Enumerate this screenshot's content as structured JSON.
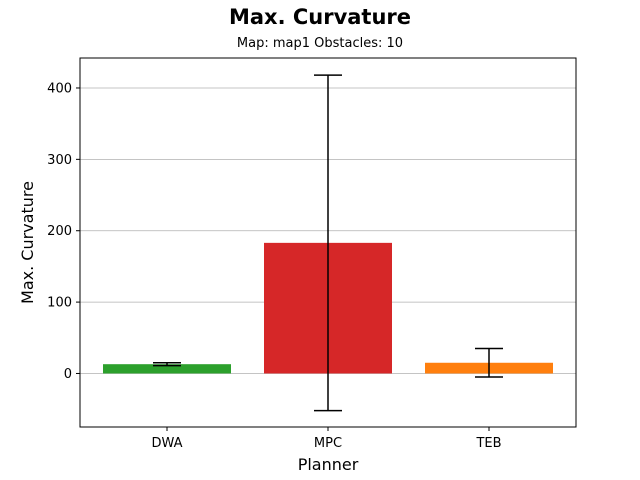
{
  "figure": {
    "title": "Max. Curvature",
    "subtitle": "Map: map1 Obstacles: 10"
  },
  "chart_data": {
    "type": "bar",
    "title": "Max. Curvature",
    "subtitle": "Map: map1 Obstacles: 10",
    "xlabel": "Planner",
    "ylabel": "Max. Curvature",
    "categories": [
      "DWA",
      "MPC",
      "TEB"
    ],
    "values": [
      13,
      183,
      15
    ],
    "error_low": [
      11,
      -52,
      -5
    ],
    "error_high": [
      15,
      418,
      35
    ],
    "colors": [
      "#2ca02c",
      "#d62728",
      "#ff7f0e"
    ],
    "ylim": [
      -75,
      442
    ],
    "yticks": [
      0,
      100,
      200,
      300,
      400
    ],
    "grid": "y-axis",
    "legend": "none"
  }
}
